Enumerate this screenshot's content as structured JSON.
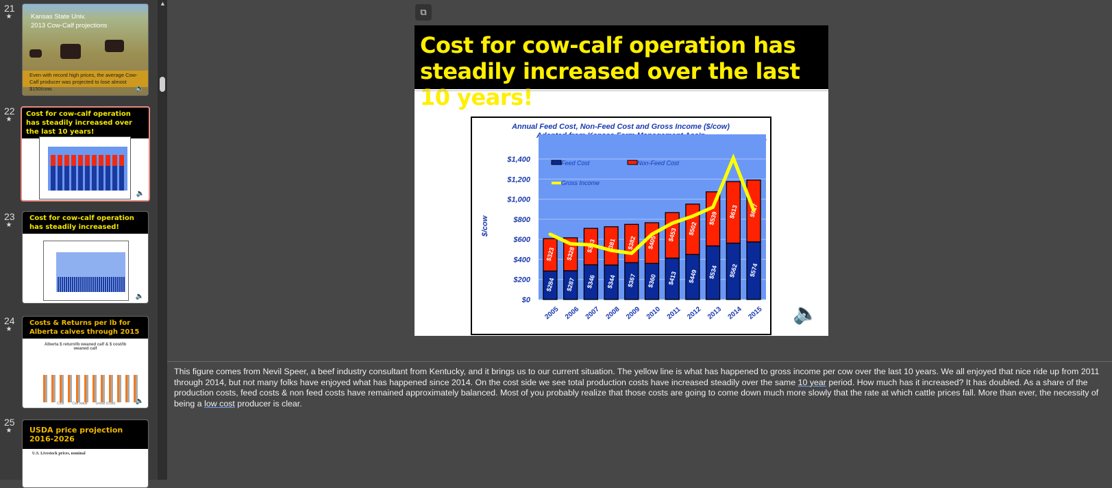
{
  "slides": [
    {
      "number": "21",
      "title_line1": "Kansas State Univ.",
      "title_line2": "2013 Cow-Calf projections",
      "caption": "Even with record high prices, the average Cow-Calf producer was projected to lose almost $150/cow."
    },
    {
      "number": "22",
      "title": "Cost for cow-calf operation has steadily increased over the last 10 years!"
    },
    {
      "number": "23",
      "title": "Cost for cow-calf operation has steadily increased!"
    },
    {
      "number": "24",
      "title": "Costs & Returns per lb for Alberta calves through 2015",
      "chart_title": "Alberta $ return/lb weaned calf & $ cost/lb weaned calf",
      "legend": [
        "Cost",
        "Calf value",
        "Linear (Cost)"
      ]
    },
    {
      "number": "25",
      "title": "USDA price projection 2016-2026",
      "subtitle": "U.S. Livestock prices, nominal"
    }
  ],
  "current_slide": {
    "title": "Cost for cow-calf operation has steadily increased over the last 10 years!"
  },
  "chart_data": {
    "type": "bar",
    "stacked": true,
    "title": "Annual Feed Cost, Non-Feed Cost and Gross Income ($/cow)",
    "subtitle": "Adapted from Kansas Farm Management Ass'n",
    "credit": "Nevil Speer",
    "ylabel": "$/cow",
    "ylim": [
      0,
      1400
    ],
    "yticks": [
      "$0",
      "$200",
      "$400",
      "$600",
      "$800",
      "$1,000",
      "$1,200",
      "$1,400"
    ],
    "categories": [
      "2005",
      "2006",
      "2007",
      "2008",
      "2009",
      "2010",
      "2011",
      "2012",
      "2013",
      "2014",
      "2015"
    ],
    "series": [
      {
        "name": "Feed Cost",
        "type": "bar",
        "color": "#0a2a9a",
        "values": [
          284,
          287,
          346,
          344,
          367,
          360,
          413,
          449,
          534,
          562,
          574
        ],
        "labels": [
          "$284",
          "$287",
          "$346",
          "$344",
          "$367",
          "$360",
          "$413",
          "$449",
          "$534",
          "$562",
          "$574"
        ]
      },
      {
        "name": "Non-Feed Cost",
        "type": "bar",
        "color": "#ff2200",
        "values": [
          323,
          328,
          363,
          381,
          382,
          405,
          453,
          502,
          539,
          613,
          617
        ],
        "labels": [
          "$323",
          "$328",
          "$363",
          "$381",
          "$382",
          "$405",
          "$453",
          "$502",
          "$539",
          "$613",
          "$617"
        ]
      },
      {
        "name": "Gross Income",
        "type": "line",
        "color": "#ffff00",
        "values": [
          650,
          555,
          545,
          490,
          460,
          650,
          760,
          830,
          920,
          1410,
          890
        ]
      }
    ],
    "grid": true,
    "legend": "top-left"
  },
  "notes": {
    "p1": "This figure comes from Nevil Speer, a beef industry consultant from Kentucky, and it brings us to our current situation. The yellow line is what has happened to gross income per cow over the last 10 years. We all enjoyed that nice ride up from 2011 through 2014, but not many folks have enjoyed what has happened since 2014. On the cost side we see total production costs have increased steadily over the same ",
    "u1": "10 year",
    "p2": " period. How much has it increased? It has doubled. As a share of the production costs, feed costs & non feed costs have remained approximately balanced. Most of you probably realize that those costs are going to come down much more slowly that the rate at which cattle prices fall. More than ever, the necessity of being a ",
    "u2": "low cost",
    "p3": " producer is clear."
  }
}
